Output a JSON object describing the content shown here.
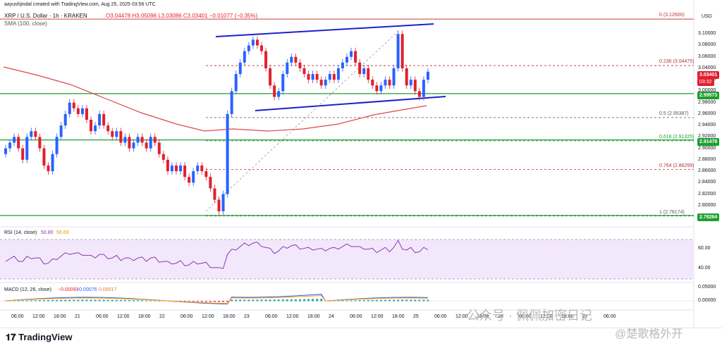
{
  "meta": {
    "created_by": "aayushjindal created with TradingView.com, Aug 25, 2025 03:56 UTC"
  },
  "header": {
    "symbol": "XRP / U.S. Dollar · 1h · KRAKEN",
    "ohlc": "O3.04478 H3.05096 L3.03086 C3.03401 −0.01077 (−0.35%)",
    "sma": "SMA (100, close)",
    "currency": "USD"
  },
  "price_axis": {
    "ticks": [
      "3.10000",
      "3.08000",
      "3.06000",
      "3.04000",
      "3.02000",
      "3.00000",
      "2.98000",
      "2.96000",
      "2.94000",
      "2.92000",
      "2.90000",
      "2.88000",
      "2.86000",
      "2.84000",
      "2.82000",
      "2.80000",
      "2.78000"
    ],
    "current_price": "3.03401",
    "countdown": "03:32",
    "support_upper": "2.99573",
    "support_lower": "2.91478",
    "support_bottom": "2.78264"
  },
  "fib_levels": [
    {
      "label": "0 (3.12600)",
      "value": 3.126
    },
    {
      "label": "0.236 (3.04475)",
      "value": 3.04475
    },
    {
      "label": "0.5 (2.95387)",
      "value": 2.95387
    },
    {
      "label": "0.618 (2.91325)",
      "value": 2.91325
    },
    {
      "label": "0.764 (2.86299)",
      "value": 2.86299
    },
    {
      "label": "1 (2.78174)",
      "value": 2.78174
    }
  ],
  "rsi": {
    "label": "RSI (14, close)",
    "value1": "50.80",
    "value2": "56.69",
    "ticks": [
      "60.00",
      "40.00"
    ]
  },
  "macd": {
    "label": "MACD (12, 26, close)",
    "v1": "−0.00093",
    "v2": "−0.00076",
    "v3": "0.00017",
    "ticks": [
      "0.05000",
      "0.00000"
    ]
  },
  "time_axis": [
    "06:00",
    "12:00",
    "18:00",
    "21",
    "06:00",
    "12:00",
    "18:00",
    "22",
    "06:00",
    "12:00",
    "18:00",
    "23",
    "06:00",
    "12:00",
    "18:00",
    "24",
    "06:00",
    "12:00",
    "18:00",
    "25",
    "06:00",
    "12:00",
    "18:00",
    "26",
    "06:00",
    "12:00",
    "18:00",
    "27",
    "06:00"
  ],
  "footer": {
    "brand": "TradingView",
    "watermark1": "公众号 · 佩佩加密日记",
    "watermark2": "@楚歌格外开"
  },
  "colors": {
    "up": "#2962ff",
    "down": "#e0202e",
    "sma": "#e0454c",
    "support": "#1e9e30",
    "channel": "#2020c8",
    "rsi": "#8c35b5"
  },
  "chart_data": {
    "type": "candlestick",
    "title": "XRP / U.S. Dollar · 1h · KRAKEN",
    "ylabel": "USD",
    "ylim": [
      2.77,
      3.13
    ],
    "x": [],
    "series": []
  }
}
